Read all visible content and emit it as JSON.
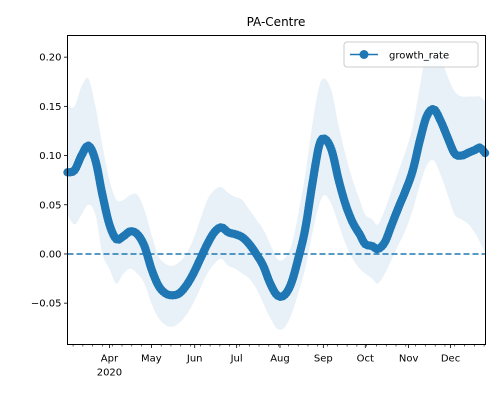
{
  "chart_data": {
    "type": "line",
    "title": "PA-Centre",
    "xlabel": "",
    "ylabel": "",
    "ylim": [
      -0.092,
      0.222
    ],
    "xlim": [
      "2020-03-02",
      "2020-12-26"
    ],
    "grid": false,
    "legend": {
      "position": "top-right",
      "entries": [
        "growth_rate"
      ]
    },
    "x_ticks": [
      {
        "date": "2020-04-01",
        "label": "Apr",
        "sublabel": "2020"
      },
      {
        "date": "2020-05-01",
        "label": "May"
      },
      {
        "date": "2020-06-01",
        "label": "Jun"
      },
      {
        "date": "2020-07-01",
        "label": "Jul"
      },
      {
        "date": "2020-08-01",
        "label": "Aug"
      },
      {
        "date": "2020-09-01",
        "label": "Sep"
      },
      {
        "date": "2020-10-01",
        "label": "Oct"
      },
      {
        "date": "2020-11-01",
        "label": "Nov"
      },
      {
        "date": "2020-12-01",
        "label": "Dec"
      }
    ],
    "y_ticks": [
      {
        "value": -0.05,
        "label": "−0.05"
      },
      {
        "value": 0.0,
        "label": "0.00"
      },
      {
        "value": 0.05,
        "label": "0.05"
      },
      {
        "value": 0.1,
        "label": "0.10"
      },
      {
        "value": 0.15,
        "label": "0.15"
      },
      {
        "value": 0.2,
        "label": "0.20"
      }
    ],
    "reference_line": {
      "value": 0.0,
      "style": "dashed"
    },
    "series": [
      {
        "name": "growth_rate",
        "color": "#1f77b4",
        "marker": "circle",
        "band_color": "#1f77b4",
        "points": [
          {
            "x": "2020-03-02",
            "y": 0.083,
            "lo": 0.04,
            "hi": 0.15
          },
          {
            "x": "2020-03-07",
            "y": 0.085,
            "lo": 0.03,
            "hi": 0.15
          },
          {
            "x": "2020-03-12",
            "y": 0.1,
            "lo": 0.04,
            "hi": 0.17
          },
          {
            "x": "2020-03-17",
            "y": 0.11,
            "lo": 0.05,
            "hi": 0.178
          },
          {
            "x": "2020-03-22",
            "y": 0.095,
            "lo": 0.04,
            "hi": 0.15
          },
          {
            "x": "2020-03-27",
            "y": 0.06,
            "lo": 0.0,
            "hi": 0.11
          },
          {
            "x": "2020-04-01",
            "y": 0.03,
            "lo": -0.015,
            "hi": 0.075
          },
          {
            "x": "2020-04-06",
            "y": 0.015,
            "lo": -0.03,
            "hi": 0.055
          },
          {
            "x": "2020-04-11",
            "y": 0.018,
            "lo": -0.02,
            "hi": 0.055
          },
          {
            "x": "2020-04-16",
            "y": 0.023,
            "lo": -0.015,
            "hi": 0.06
          },
          {
            "x": "2020-04-21",
            "y": 0.02,
            "lo": -0.02,
            "hi": 0.06
          },
          {
            "x": "2020-04-26",
            "y": 0.008,
            "lo": -0.03,
            "hi": 0.045
          },
          {
            "x": "2020-05-01",
            "y": -0.015,
            "lo": -0.05,
            "hi": 0.02
          },
          {
            "x": "2020-05-06",
            "y": -0.032,
            "lo": -0.065,
            "hi": -0.002
          },
          {
            "x": "2020-05-11",
            "y": -0.04,
            "lo": -0.072,
            "hi": -0.01
          },
          {
            "x": "2020-05-16",
            "y": -0.042,
            "lo": -0.074,
            "hi": -0.012
          },
          {
            "x": "2020-05-21",
            "y": -0.04,
            "lo": -0.07,
            "hi": -0.008
          },
          {
            "x": "2020-05-26",
            "y": -0.032,
            "lo": -0.062,
            "hi": 0.0
          },
          {
            "x": "2020-05-31",
            "y": -0.02,
            "lo": -0.05,
            "hi": 0.015
          },
          {
            "x": "2020-06-05",
            "y": -0.005,
            "lo": -0.035,
            "hi": 0.035
          },
          {
            "x": "2020-06-10",
            "y": 0.01,
            "lo": -0.02,
            "hi": 0.055
          },
          {
            "x": "2020-06-15",
            "y": 0.022,
            "lo": -0.01,
            "hi": 0.065
          },
          {
            "x": "2020-06-20",
            "y": 0.027,
            "lo": -0.005,
            "hi": 0.068
          },
          {
            "x": "2020-06-25",
            "y": 0.022,
            "lo": -0.012,
            "hi": 0.062
          },
          {
            "x": "2020-06-30",
            "y": 0.02,
            "lo": -0.015,
            "hi": 0.058
          },
          {
            "x": "2020-07-05",
            "y": 0.017,
            "lo": -0.02,
            "hi": 0.055
          },
          {
            "x": "2020-07-10",
            "y": 0.01,
            "lo": -0.025,
            "hi": 0.045
          },
          {
            "x": "2020-07-15",
            "y": 0.0,
            "lo": -0.035,
            "hi": 0.035
          },
          {
            "x": "2020-07-20",
            "y": -0.012,
            "lo": -0.05,
            "hi": 0.025
          },
          {
            "x": "2020-07-25",
            "y": -0.03,
            "lo": -0.065,
            "hi": 0.01
          },
          {
            "x": "2020-07-30",
            "y": -0.042,
            "lo": -0.076,
            "hi": -0.005
          },
          {
            "x": "2020-08-04",
            "y": -0.042,
            "lo": -0.075,
            "hi": -0.005
          },
          {
            "x": "2020-08-09",
            "y": -0.03,
            "lo": -0.062,
            "hi": 0.008
          },
          {
            "x": "2020-08-14",
            "y": -0.005,
            "lo": -0.04,
            "hi": 0.04
          },
          {
            "x": "2020-08-19",
            "y": 0.025,
            "lo": -0.015,
            "hi": 0.08
          },
          {
            "x": "2020-08-24",
            "y": 0.07,
            "lo": 0.02,
            "hi": 0.13
          },
          {
            "x": "2020-08-29",
            "y": 0.11,
            "lo": 0.05,
            "hi": 0.17
          },
          {
            "x": "2020-09-02",
            "y": 0.117,
            "lo": 0.06,
            "hi": 0.178
          },
          {
            "x": "2020-09-07",
            "y": 0.105,
            "lo": 0.05,
            "hi": 0.165
          },
          {
            "x": "2020-09-12",
            "y": 0.075,
            "lo": 0.03,
            "hi": 0.13
          },
          {
            "x": "2020-09-17",
            "y": 0.05,
            "lo": 0.01,
            "hi": 0.1
          },
          {
            "x": "2020-09-22",
            "y": 0.032,
            "lo": -0.005,
            "hi": 0.075
          },
          {
            "x": "2020-09-27",
            "y": 0.02,
            "lo": -0.015,
            "hi": 0.055
          },
          {
            "x": "2020-10-01",
            "y": 0.01,
            "lo": -0.02,
            "hi": 0.04
          },
          {
            "x": "2020-10-06",
            "y": 0.008,
            "lo": -0.025,
            "hi": 0.035
          },
          {
            "x": "2020-10-10",
            "y": 0.005,
            "lo": -0.03,
            "hi": 0.03
          },
          {
            "x": "2020-10-15",
            "y": 0.012,
            "lo": -0.02,
            "hi": 0.045
          },
          {
            "x": "2020-10-20",
            "y": 0.03,
            "lo": -0.005,
            "hi": 0.065
          },
          {
            "x": "2020-10-25",
            "y": 0.048,
            "lo": 0.01,
            "hi": 0.085
          },
          {
            "x": "2020-10-30",
            "y": 0.065,
            "lo": 0.025,
            "hi": 0.105
          },
          {
            "x": "2020-11-04",
            "y": 0.085,
            "lo": 0.045,
            "hi": 0.13
          },
          {
            "x": "2020-11-09",
            "y": 0.115,
            "lo": 0.07,
            "hi": 0.17
          },
          {
            "x": "2020-11-14",
            "y": 0.14,
            "lo": 0.09,
            "hi": 0.205
          },
          {
            "x": "2020-11-19",
            "y": 0.147,
            "lo": 0.095,
            "hi": 0.21
          },
          {
            "x": "2020-11-24",
            "y": 0.135,
            "lo": 0.08,
            "hi": 0.2
          },
          {
            "x": "2020-11-29",
            "y": 0.118,
            "lo": 0.06,
            "hi": 0.18
          },
          {
            "x": "2020-12-04",
            "y": 0.102,
            "lo": 0.04,
            "hi": 0.165
          },
          {
            "x": "2020-12-09",
            "y": 0.1,
            "lo": 0.035,
            "hi": 0.16
          },
          {
            "x": "2020-12-14",
            "y": 0.103,
            "lo": 0.03,
            "hi": 0.16
          },
          {
            "x": "2020-12-19",
            "y": 0.106,
            "lo": 0.02,
            "hi": 0.16
          },
          {
            "x": "2020-12-22",
            "y": 0.108,
            "lo": 0.012,
            "hi": 0.16
          },
          {
            "x": "2020-12-26",
            "y": 0.102,
            "lo": 0.0,
            "hi": 0.155
          }
        ]
      }
    ]
  }
}
